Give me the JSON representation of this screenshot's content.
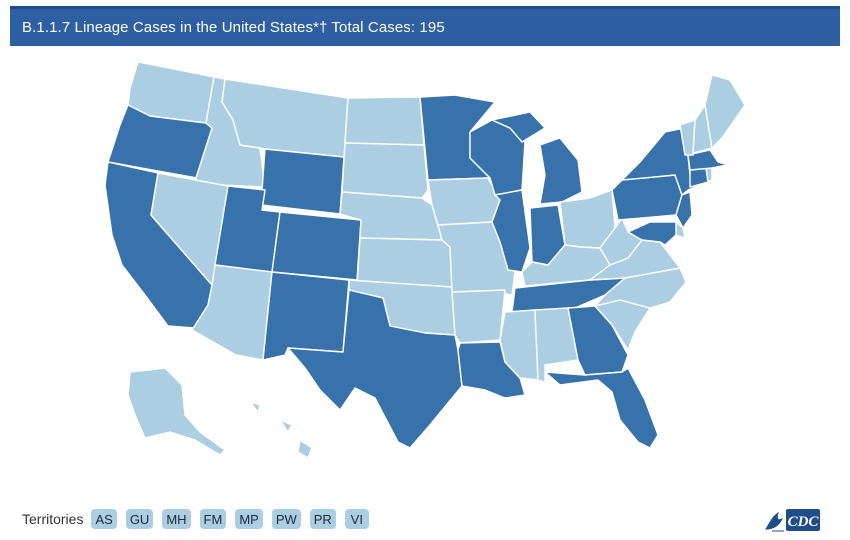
{
  "header": {
    "title": "B.1.1.7 Lineage Cases in the United States*† Total Cases: 195"
  },
  "colors": {
    "high": "#3872aa",
    "low": "#abcee3",
    "title_bar": "#2e5fa3"
  },
  "map": {
    "states": [
      {
        "id": "WA",
        "level": "low"
      },
      {
        "id": "OR",
        "level": "high"
      },
      {
        "id": "CA",
        "level": "high"
      },
      {
        "id": "ID",
        "level": "low"
      },
      {
        "id": "NV",
        "level": "low"
      },
      {
        "id": "MT",
        "level": "low"
      },
      {
        "id": "WY",
        "level": "high"
      },
      {
        "id": "UT",
        "level": "high"
      },
      {
        "id": "AZ",
        "level": "low"
      },
      {
        "id": "CO",
        "level": "high"
      },
      {
        "id": "NM",
        "level": "high"
      },
      {
        "id": "ND",
        "level": "low"
      },
      {
        "id": "SD",
        "level": "low"
      },
      {
        "id": "NE",
        "level": "low"
      },
      {
        "id": "KS",
        "level": "low"
      },
      {
        "id": "OK",
        "level": "low"
      },
      {
        "id": "TX",
        "level": "high"
      },
      {
        "id": "MN",
        "level": "high"
      },
      {
        "id": "IA",
        "level": "low"
      },
      {
        "id": "MO",
        "level": "low"
      },
      {
        "id": "AR",
        "level": "low"
      },
      {
        "id": "LA",
        "level": "high"
      },
      {
        "id": "WI",
        "level": "high"
      },
      {
        "id": "IL",
        "level": "high"
      },
      {
        "id": "MI",
        "level": "high"
      },
      {
        "id": "IN",
        "level": "high"
      },
      {
        "id": "OH",
        "level": "low"
      },
      {
        "id": "KY",
        "level": "low"
      },
      {
        "id": "TN",
        "level": "high"
      },
      {
        "id": "MS",
        "level": "low"
      },
      {
        "id": "AL",
        "level": "low"
      },
      {
        "id": "GA",
        "level": "high"
      },
      {
        "id": "FL",
        "level": "high"
      },
      {
        "id": "SC",
        "level": "low"
      },
      {
        "id": "NC",
        "level": "low"
      },
      {
        "id": "VA",
        "level": "low"
      },
      {
        "id": "WV",
        "level": "low"
      },
      {
        "id": "PA",
        "level": "high"
      },
      {
        "id": "NY",
        "level": "high"
      },
      {
        "id": "NJ",
        "level": "high"
      },
      {
        "id": "DE",
        "level": "low"
      },
      {
        "id": "MD",
        "level": "high"
      },
      {
        "id": "CT",
        "level": "high"
      },
      {
        "id": "RI",
        "level": "low"
      },
      {
        "id": "MA",
        "level": "high"
      },
      {
        "id": "VT",
        "level": "low"
      },
      {
        "id": "NH",
        "level": "low"
      },
      {
        "id": "ME",
        "level": "low"
      },
      {
        "id": "AK",
        "level": "low"
      },
      {
        "id": "HI",
        "level": "low"
      }
    ]
  },
  "footer": {
    "territories_label": "Territories",
    "territories": [
      {
        "code": "AS",
        "level": "low"
      },
      {
        "code": "GU",
        "level": "low"
      },
      {
        "code": "MH",
        "level": "low"
      },
      {
        "code": "FM",
        "level": "low"
      },
      {
        "code": "MP",
        "level": "low"
      },
      {
        "code": "PW",
        "level": "low"
      },
      {
        "code": "PR",
        "level": "low"
      },
      {
        "code": "VI",
        "level": "low"
      }
    ]
  },
  "logo": {
    "text": "CDC"
  }
}
